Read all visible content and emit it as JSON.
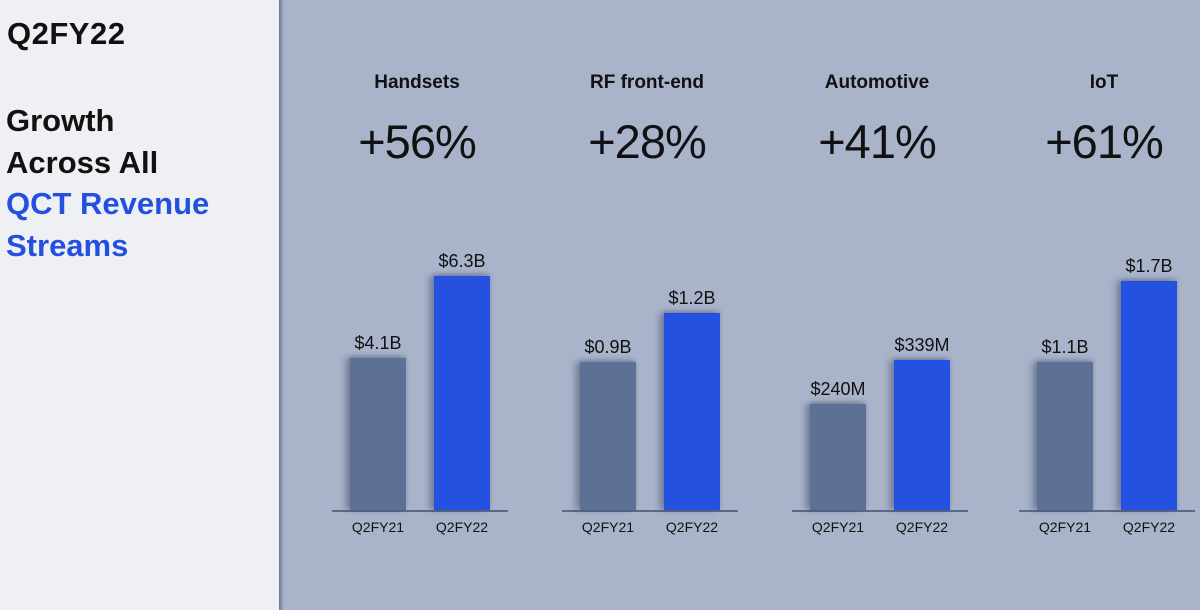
{
  "sidebar": {
    "period": "Q2FY22",
    "headline": [
      "Growth",
      "Across All"
    ],
    "headline_accent": [
      "QCT Revenue",
      "Streams"
    ]
  },
  "colors": {
    "accent": "#2350de",
    "prior_bar": "#5d7096",
    "current_bar": "#2551e1",
    "background": "#a9b4ca"
  },
  "chart_data": [
    {
      "type": "bar",
      "title": "Handsets",
      "growth": "+56%",
      "categories": [
        "Q2FY21",
        "Q2FY22"
      ],
      "values": [
        4.1,
        6.3
      ],
      "value_labels": [
        "$4.1B",
        "$6.3B"
      ],
      "unit": "$B"
    },
    {
      "type": "bar",
      "title": "RF front-end",
      "growth": "+28%",
      "categories": [
        "Q2FY21",
        "Q2FY22"
      ],
      "values": [
        0.9,
        1.2
      ],
      "value_labels": [
        "$0.9B",
        "$1.2B"
      ],
      "unit": "$B"
    },
    {
      "type": "bar",
      "title": "Automotive",
      "growth": "+41%",
      "categories": [
        "Q2FY21",
        "Q2FY22"
      ],
      "values": [
        240,
        339
      ],
      "value_labels": [
        "$240M",
        "$339M"
      ],
      "unit": "$M"
    },
    {
      "type": "bar",
      "title": "IoT",
      "growth": "+61%",
      "categories": [
        "Q2FY21",
        "Q2FY22"
      ],
      "values": [
        1.1,
        1.7
      ],
      "value_labels": [
        "$1.1B",
        "$1.7B"
      ],
      "unit": "$B"
    }
  ]
}
